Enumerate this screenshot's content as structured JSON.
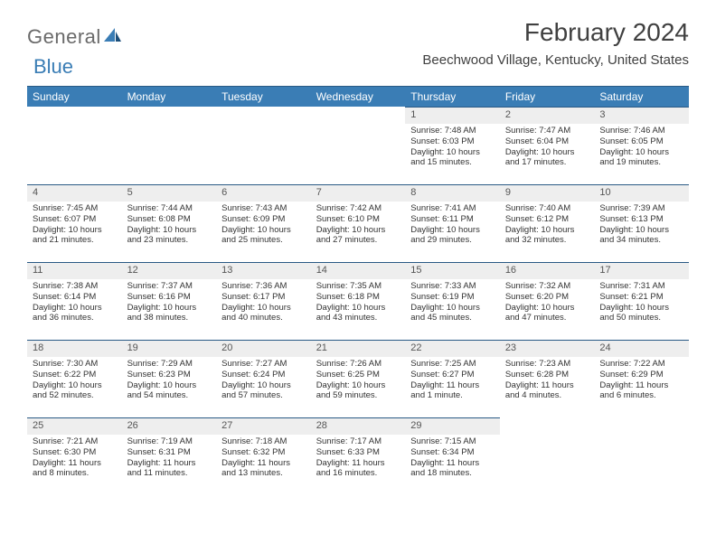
{
  "logo": {
    "word1": "General",
    "word2": "Blue"
  },
  "title": "February 2024",
  "location": "Beechwood Village, Kentucky, United States",
  "colors": {
    "header_bg": "#3a7db5",
    "header_border": "#2a5a85",
    "daynum_bg": "#eeeeee",
    "text": "#333333",
    "logo_gray": "#6a6a6a",
    "logo_blue": "#3a7db5"
  },
  "weekdays": [
    "Sunday",
    "Monday",
    "Tuesday",
    "Wednesday",
    "Thursday",
    "Friday",
    "Saturday"
  ],
  "weeks": [
    [
      {
        "n": "",
        "sr": "",
        "ss": "",
        "dl": ""
      },
      {
        "n": "",
        "sr": "",
        "ss": "",
        "dl": ""
      },
      {
        "n": "",
        "sr": "",
        "ss": "",
        "dl": ""
      },
      {
        "n": "",
        "sr": "",
        "ss": "",
        "dl": ""
      },
      {
        "n": "1",
        "sr": "7:48 AM",
        "ss": "6:03 PM",
        "dl": "10 hours and 15 minutes."
      },
      {
        "n": "2",
        "sr": "7:47 AM",
        "ss": "6:04 PM",
        "dl": "10 hours and 17 minutes."
      },
      {
        "n": "3",
        "sr": "7:46 AM",
        "ss": "6:05 PM",
        "dl": "10 hours and 19 minutes."
      }
    ],
    [
      {
        "n": "4",
        "sr": "7:45 AM",
        "ss": "6:07 PM",
        "dl": "10 hours and 21 minutes."
      },
      {
        "n": "5",
        "sr": "7:44 AM",
        "ss": "6:08 PM",
        "dl": "10 hours and 23 minutes."
      },
      {
        "n": "6",
        "sr": "7:43 AM",
        "ss": "6:09 PM",
        "dl": "10 hours and 25 minutes."
      },
      {
        "n": "7",
        "sr": "7:42 AM",
        "ss": "6:10 PM",
        "dl": "10 hours and 27 minutes."
      },
      {
        "n": "8",
        "sr": "7:41 AM",
        "ss": "6:11 PM",
        "dl": "10 hours and 29 minutes."
      },
      {
        "n": "9",
        "sr": "7:40 AM",
        "ss": "6:12 PM",
        "dl": "10 hours and 32 minutes."
      },
      {
        "n": "10",
        "sr": "7:39 AM",
        "ss": "6:13 PM",
        "dl": "10 hours and 34 minutes."
      }
    ],
    [
      {
        "n": "11",
        "sr": "7:38 AM",
        "ss": "6:14 PM",
        "dl": "10 hours and 36 minutes."
      },
      {
        "n": "12",
        "sr": "7:37 AM",
        "ss": "6:16 PM",
        "dl": "10 hours and 38 minutes."
      },
      {
        "n": "13",
        "sr": "7:36 AM",
        "ss": "6:17 PM",
        "dl": "10 hours and 40 minutes."
      },
      {
        "n": "14",
        "sr": "7:35 AM",
        "ss": "6:18 PM",
        "dl": "10 hours and 43 minutes."
      },
      {
        "n": "15",
        "sr": "7:33 AM",
        "ss": "6:19 PM",
        "dl": "10 hours and 45 minutes."
      },
      {
        "n": "16",
        "sr": "7:32 AM",
        "ss": "6:20 PM",
        "dl": "10 hours and 47 minutes."
      },
      {
        "n": "17",
        "sr": "7:31 AM",
        "ss": "6:21 PM",
        "dl": "10 hours and 50 minutes."
      }
    ],
    [
      {
        "n": "18",
        "sr": "7:30 AM",
        "ss": "6:22 PM",
        "dl": "10 hours and 52 minutes."
      },
      {
        "n": "19",
        "sr": "7:29 AM",
        "ss": "6:23 PM",
        "dl": "10 hours and 54 minutes."
      },
      {
        "n": "20",
        "sr": "7:27 AM",
        "ss": "6:24 PM",
        "dl": "10 hours and 57 minutes."
      },
      {
        "n": "21",
        "sr": "7:26 AM",
        "ss": "6:25 PM",
        "dl": "10 hours and 59 minutes."
      },
      {
        "n": "22",
        "sr": "7:25 AM",
        "ss": "6:27 PM",
        "dl": "11 hours and 1 minute."
      },
      {
        "n": "23",
        "sr": "7:23 AM",
        "ss": "6:28 PM",
        "dl": "11 hours and 4 minutes."
      },
      {
        "n": "24",
        "sr": "7:22 AM",
        "ss": "6:29 PM",
        "dl": "11 hours and 6 minutes."
      }
    ],
    [
      {
        "n": "25",
        "sr": "7:21 AM",
        "ss": "6:30 PM",
        "dl": "11 hours and 8 minutes."
      },
      {
        "n": "26",
        "sr": "7:19 AM",
        "ss": "6:31 PM",
        "dl": "11 hours and 11 minutes."
      },
      {
        "n": "27",
        "sr": "7:18 AM",
        "ss": "6:32 PM",
        "dl": "11 hours and 13 minutes."
      },
      {
        "n": "28",
        "sr": "7:17 AM",
        "ss": "6:33 PM",
        "dl": "11 hours and 16 minutes."
      },
      {
        "n": "29",
        "sr": "7:15 AM",
        "ss": "6:34 PM",
        "dl": "11 hours and 18 minutes."
      },
      {
        "n": "",
        "sr": "",
        "ss": "",
        "dl": ""
      },
      {
        "n": "",
        "sr": "",
        "ss": "",
        "dl": ""
      }
    ]
  ],
  "labels": {
    "sunrise": "Sunrise: ",
    "sunset": "Sunset: ",
    "daylight": "Daylight: "
  }
}
